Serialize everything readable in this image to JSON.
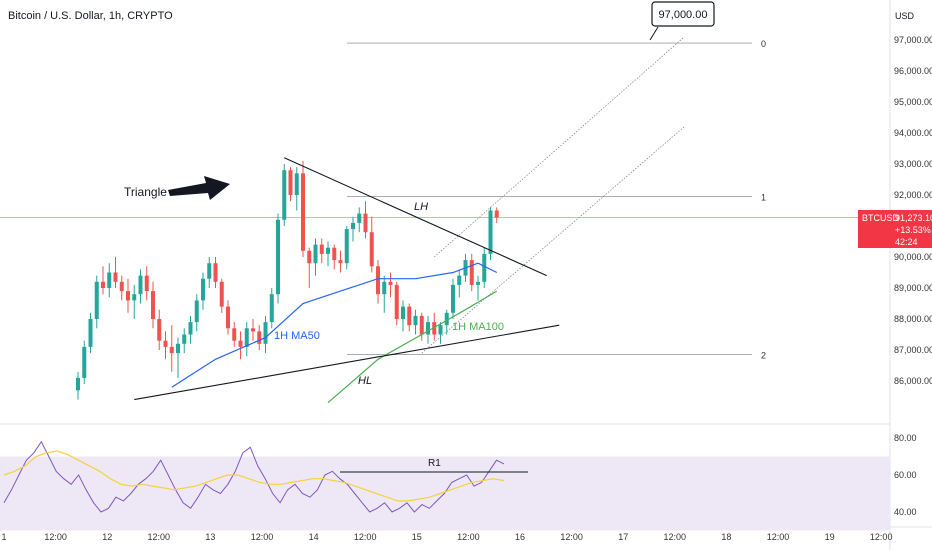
{
  "header": {
    "title": "Bitcoin / U.S. Dollar, 1h, CRYPTO",
    "currency": "USD"
  },
  "price_badge": {
    "symbol": "BTCUSD",
    "price": "91,273.10",
    "change": "+13.53%",
    "countdown": "42:24",
    "color": "#f23645"
  },
  "annotations": {
    "triangle_label": "Triangle",
    "lh_label": "LH",
    "hl_label": "HL",
    "ma50_label": "1H MA50",
    "ma100_label": "1H MA100",
    "target_label": "97,000.00",
    "r1_label": "R1",
    "fib_levels": [
      "2",
      "1",
      "0"
    ]
  },
  "colors": {
    "up": "#26a69a",
    "down": "#ef5350",
    "ma50": "#2962ff",
    "ma100": "#4caf50",
    "rsi": "#7e57c2",
    "rsi_ma": "#f5d33a",
    "rsi_band": "#ede7f6"
  },
  "chart_data": {
    "type": "candlestick",
    "price_axis": {
      "ticks": [
        86000,
        87000,
        88000,
        89000,
        90000,
        91000,
        92000,
        93000,
        94000,
        95000,
        96000,
        97000
      ],
      "tick_labels": [
        "86,000.00",
        "87,000.00",
        "88,000.00",
        "89,000.00",
        "90,000.00",
        "91,000.00",
        "92,000.00",
        "93,000.00",
        "94,000.00",
        "95,000.00",
        "96,000.00",
        "97,000.00"
      ]
    },
    "time_axis": {
      "labels": [
        "1",
        "12:00",
        "12",
        "12:00",
        "13",
        "12:00",
        "14",
        "12:00",
        "15",
        "12:00",
        "16",
        "12:00",
        "17",
        "12:00",
        "18",
        "12:00",
        "19",
        "12:00"
      ]
    },
    "rsi_axis": {
      "ticks": [
        40,
        60,
        80
      ],
      "tick_labels": [
        "40.00",
        "60.00",
        "80.00"
      ],
      "band": [
        30,
        70
      ]
    },
    "current_price": 91273.1,
    "fib_levels": [
      {
        "label": "0",
        "price": 86850
      },
      {
        "label": "1",
        "price": 91950
      },
      {
        "label": "2",
        "price": 96900
      }
    ],
    "candles": [
      [
        85700,
        86300,
        85400,
        86100
      ],
      [
        86100,
        87300,
        85900,
        87100
      ],
      [
        87100,
        88200,
        86900,
        88000
      ],
      [
        88000,
        89400,
        87700,
        89200
      ],
      [
        89200,
        89700,
        88800,
        89000
      ],
      [
        89000,
        89800,
        88700,
        89500
      ],
      [
        89500,
        90000,
        89000,
        89200
      ],
      [
        89200,
        89400,
        88600,
        88900
      ],
      [
        88900,
        89300,
        88200,
        88600
      ],
      [
        88600,
        89100,
        88000,
        88800
      ],
      [
        88800,
        89600,
        88500,
        89400
      ],
      [
        89400,
        89700,
        88600,
        88900
      ],
      [
        88900,
        89200,
        87700,
        88000
      ],
      [
        88000,
        88300,
        87000,
        87300
      ],
      [
        87300,
        87600,
        86700,
        87100
      ],
      [
        87100,
        87800,
        86300,
        86900
      ],
      [
        86900,
        87400,
        86100,
        87200
      ],
      [
        87200,
        87700,
        86900,
        87500
      ],
      [
        87500,
        88100,
        87200,
        87900
      ],
      [
        87900,
        88800,
        87600,
        88600
      ],
      [
        88600,
        89500,
        88300,
        89300
      ],
      [
        89300,
        90000,
        89000,
        89800
      ],
      [
        89800,
        90000,
        89000,
        89200
      ],
      [
        89200,
        89300,
        88200,
        88400
      ],
      [
        88400,
        88600,
        87500,
        87700
      ],
      [
        87700,
        87900,
        87100,
        87300
      ],
      [
        87300,
        87600,
        86700,
        87100
      ],
      [
        87100,
        87900,
        86800,
        87700
      ],
      [
        87700,
        88000,
        87300,
        87600
      ],
      [
        87600,
        87800,
        87000,
        87200
      ],
      [
        87200,
        88100,
        86900,
        87900
      ],
      [
        87900,
        89000,
        87700,
        88800
      ],
      [
        88800,
        91400,
        88500,
        91200
      ],
      [
        91200,
        93000,
        91000,
        92800
      ],
      [
        92800,
        92900,
        91800,
        92000
      ],
      [
        92000,
        92900,
        91500,
        92700
      ],
      [
        92700,
        93100,
        90000,
        90200
      ],
      [
        90200,
        90300,
        89000,
        89800
      ],
      [
        89800,
        90600,
        89400,
        90400
      ],
      [
        90400,
        90600,
        89800,
        90100
      ],
      [
        90100,
        90500,
        89700,
        90300
      ],
      [
        90300,
        90400,
        89600,
        89900
      ],
      [
        89900,
        90200,
        89500,
        89800
      ],
      [
        89800,
        91000,
        89600,
        90900
      ],
      [
        90900,
        91300,
        90500,
        91100
      ],
      [
        91100,
        91600,
        90800,
        91400
      ],
      [
        91400,
        91800,
        90600,
        90800
      ],
      [
        90800,
        91300,
        89500,
        89700
      ],
      [
        89700,
        89900,
        88500,
        88800
      ],
      [
        88800,
        89400,
        88200,
        89200
      ],
      [
        89200,
        89500,
        88700,
        89100
      ],
      [
        89100,
        89200,
        87800,
        88000
      ],
      [
        88000,
        88600,
        87600,
        88400
      ],
      [
        88400,
        88500,
        87600,
        87800
      ],
      [
        87800,
        88300,
        87500,
        88100
      ],
      [
        88100,
        88200,
        87300,
        87500
      ],
      [
        87500,
        88100,
        87200,
        87900
      ],
      [
        87900,
        88200,
        87300,
        87500
      ],
      [
        87500,
        87900,
        87200,
        87800
      ],
      [
        87800,
        88300,
        87500,
        88200
      ],
      [
        88200,
        89300,
        88000,
        89100
      ],
      [
        89100,
        89600,
        88700,
        89400
      ],
      [
        89400,
        90100,
        89200,
        89900
      ],
      [
        89900,
        90100,
        88900,
        89100
      ],
      [
        89100,
        89400,
        88600,
        89200
      ],
      [
        89200,
        90300,
        89000,
        90100
      ],
      [
        90100,
        91600,
        89900,
        91500
      ],
      [
        91500,
        91600,
        91100,
        91273
      ]
    ],
    "ma50": [
      {
        "i": 15,
        "p": 85800
      },
      {
        "i": 22,
        "p": 86700
      },
      {
        "i": 30,
        "p": 87400
      },
      {
        "i": 36,
        "p": 88500
      },
      {
        "i": 42,
        "p": 88900
      },
      {
        "i": 48,
        "p": 89300
      },
      {
        "i": 54,
        "p": 89300
      },
      {
        "i": 60,
        "p": 89500
      },
      {
        "i": 64,
        "p": 89800
      },
      {
        "i": 67,
        "p": 89500
      }
    ],
    "ma100": [
      {
        "i": 40,
        "p": 85300
      },
      {
        "i": 48,
        "p": 86700
      },
      {
        "i": 55,
        "p": 87500
      },
      {
        "i": 62,
        "p": 88300
      },
      {
        "i": 67,
        "p": 88900
      }
    ],
    "trendlines": [
      {
        "name": "triangle-upper-line",
        "from": {
          "i": 33,
          "p": 93200
        },
        "to": {
          "i": 75,
          "p": 89400
        }
      },
      {
        "name": "triangle-lower-line",
        "from": {
          "i": 9,
          "p": 85400
        },
        "to": {
          "i": 77,
          "p": 87800
        }
      },
      {
        "name": "channel-upper-line",
        "from": {
          "i": 57,
          "p": 90000
        },
        "to": {
          "i": 97,
          "p": 97100
        }
      },
      {
        "name": "channel-lower-line",
        "from": {
          "i": 55,
          "p": 86900
        },
        "to": {
          "i": 97,
          "p": 94200
        }
      }
    ],
    "rsi": [
      45,
      52,
      60,
      68,
      72,
      78,
      70,
      62,
      58,
      55,
      60,
      52,
      45,
      40,
      42,
      48,
      46,
      50,
      55,
      58,
      62,
      68,
      60,
      52,
      45,
      42,
      48,
      55,
      52,
      50,
      55,
      62,
      72,
      75,
      65,
      58,
      50,
      45,
      52,
      55,
      50,
      48,
      52,
      60,
      62,
      58,
      55,
      50,
      45,
      40,
      42,
      45,
      40,
      42,
      45,
      40,
      44,
      42,
      46,
      50,
      56,
      58,
      60,
      54,
      56,
      62,
      68,
      66
    ],
    "rsi_ma": [
      60,
      62,
      65,
      70,
      72,
      73,
      71,
      68,
      65,
      62,
      58,
      55,
      54,
      55,
      54,
      53,
      52,
      53,
      54,
      56,
      58,
      60,
      60,
      58,
      56,
      55,
      55,
      56,
      57,
      58,
      58,
      57,
      56,
      54,
      52,
      50,
      48,
      46,
      46,
      47,
      48,
      50,
      52,
      54,
      56,
      57,
      58,
      57
    ],
    "r1_level": 65
  }
}
